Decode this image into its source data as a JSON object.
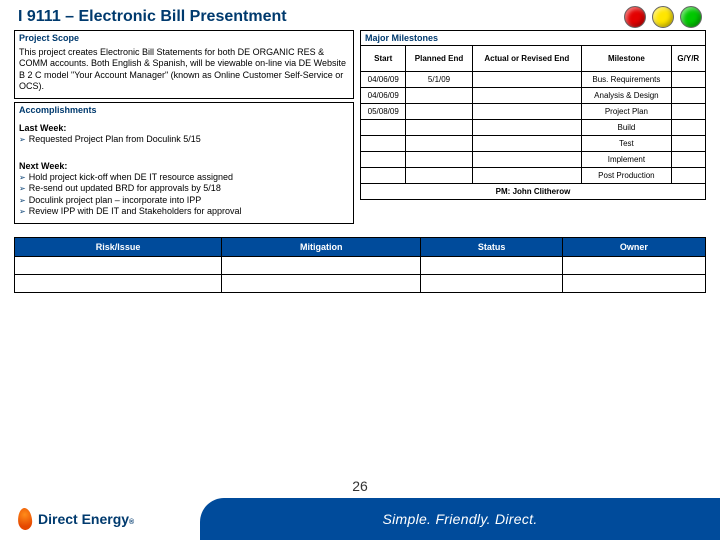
{
  "title": "I 9111 – Electronic Bill Presentment",
  "lights": {
    "red": "#e40000",
    "yellow": "#ffe600",
    "green": "#00c800"
  },
  "scope": {
    "heading": "Project Scope",
    "text": "This project creates Electronic Bill Statements for both DE ORGANIC RES & COMM accounts.  Both English & Spanish, will be viewable on-line via DE Website B 2 C model \"Your Account Manager\" (known as Online Customer Self-Service or OCS)."
  },
  "accomplishments": {
    "heading": "Accomplishments",
    "last_week_label": "Last Week:",
    "last_week_items": [
      "Requested Project Plan from Doculink 5/15"
    ],
    "next_week_label": "Next Week:",
    "next_week_items": [
      "Hold project kick-off when DE IT resource assigned",
      "Re-send out updated BRD for approvals by 5/18",
      "Doculink project plan – incorporate into IPP",
      "Review IPP with DE IT and Stakeholders for approval"
    ]
  },
  "milestones": {
    "heading": "Major Milestones",
    "columns": [
      "Start",
      "Planned End",
      "Actual or Revised End",
      "Milestone",
      "G/Y/R"
    ],
    "rows": [
      {
        "start": "04/06/09",
        "planned": "5/1/09",
        "actual": "",
        "milestone": "Bus. Requirements",
        "gyr": ""
      },
      {
        "start": "04/06/09",
        "planned": "",
        "actual": "",
        "milestone": "Analysis & Design",
        "gyr": ""
      },
      {
        "start": "05/08/09",
        "planned": "",
        "actual": "",
        "milestone": "Project Plan",
        "gyr": ""
      },
      {
        "start": "",
        "planned": "",
        "actual": "",
        "milestone": "Build",
        "gyr": ""
      },
      {
        "start": "",
        "planned": "",
        "actual": "",
        "milestone": "Test",
        "gyr": ""
      },
      {
        "start": "",
        "planned": "",
        "actual": "",
        "milestone": "Implement",
        "gyr": ""
      },
      {
        "start": "",
        "planned": "",
        "actual": "",
        "milestone": "Post Production",
        "gyr": ""
      }
    ],
    "pm_label": "PM:",
    "pm_name": "John Clitherow"
  },
  "risk_table": {
    "headers": [
      "Risk/Issue",
      "Mitigation",
      "Status",
      "Owner"
    ],
    "rows": 2
  },
  "page_number": "26",
  "brand": "Direct Energy",
  "tagline": "Simple.  Friendly.  Direct.",
  "colors": {
    "heading": "#003a6e",
    "table_header_bg": "#004b9b",
    "footer_bg": "#004b9b"
  }
}
